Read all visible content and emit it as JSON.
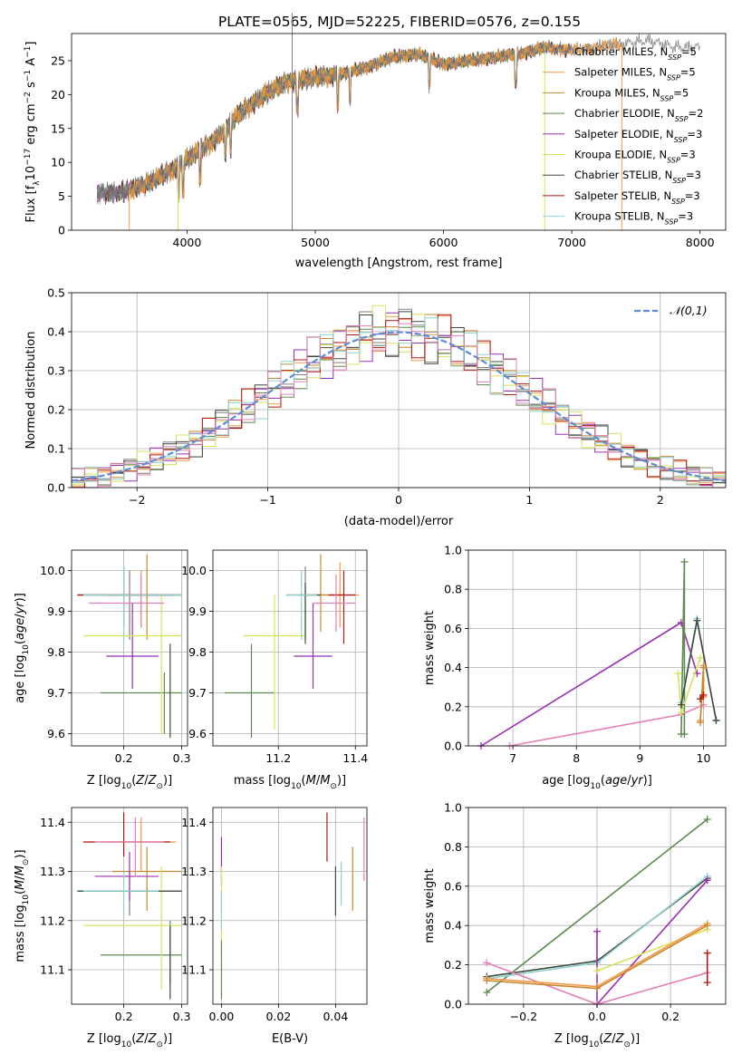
{
  "figure": {
    "title": "PLATE=0565, MJD=52225, FIBERID=0576, z=0.155"
  },
  "colors": {
    "Chabrier MILES": "#808080",
    "Salpeter MILES": "#f59a4a",
    "Kroupa MILES": "#c9882e",
    "Chabrier ELODIE": "#5d8a4e",
    "Salpeter ELODIE": "#9a2fb3",
    "Kroupa ELODIE": "#d7e35a",
    "Chabrier STELIB": "#3f4a3d",
    "Salpeter STELIB": "#b01515",
    "Kroupa STELIB": "#8fd1d1",
    "pink": "#e57fb5",
    "normal": "#5b8ed6"
  },
  "chart_data": [
    {
      "id": "spectrum",
      "type": "line",
      "xlabel": "wavelength [Angstrom, rest frame]",
      "ylabel": "Flux [f_λ10^-17 erg cm^-2 s^-1 A^-1]",
      "xlim": [
        3100,
        8200
      ],
      "ylim": [
        0,
        29
      ],
      "xticks": [
        4000,
        5000,
        6000,
        7000,
        8000
      ],
      "yticks": [
        0,
        5,
        10,
        15,
        20,
        25
      ],
      "grid": false,
      "legend_position": "upper-right",
      "legend": [
        {
          "name": "Chabrier MILES",
          "nssp": "5"
        },
        {
          "name": "Salpeter MILES",
          "nssp": "5"
        },
        {
          "name": "Kroupa MILES",
          "nssp": "5"
        },
        {
          "name": "Chabrier ELODIE",
          "nssp": "2"
        },
        {
          "name": "Salpeter ELODIE",
          "nssp": "3"
        },
        {
          "name": "Kroupa ELODIE",
          "nssp": "3"
        },
        {
          "name": "Chabrier STELIB",
          "nssp": "3"
        },
        {
          "name": "Salpeter STELIB",
          "nssp": "3"
        },
        {
          "name": "Kroupa STELIB",
          "nssp": "3"
        }
      ],
      "continuum": {
        "x": [
          3300,
          3500,
          3700,
          3900,
          4000,
          4200,
          4400,
          4600,
          4800,
          5000,
          5200,
          5400,
          5600,
          5800,
          6000,
          6200,
          6400,
          6600,
          6800,
          7000,
          7200,
          7400,
          7600,
          7800
        ],
        "y": [
          5.5,
          5.6,
          7.0,
          9.0,
          10.5,
          13.0,
          17.0,
          20.0,
          22.0,
          22.5,
          23.0,
          24.0,
          25.5,
          26.0,
          24.5,
          25.0,
          25.5,
          26.0,
          27.0,
          26.5,
          27.0,
          27.5,
          28.0,
          27.0
        ]
      },
      "drops": [
        {
          "x": 3550,
          "series": "Salpeter MILES"
        },
        {
          "x": 3930,
          "series": "Kroupa ELODIE"
        },
        {
          "x": 6790,
          "series": "Kroupa ELODIE"
        },
        {
          "x": 7390,
          "series": "Salpeter MILES"
        },
        {
          "x": 4820,
          "series": "Chabrier MILES"
        }
      ]
    },
    {
      "id": "residuals",
      "type": "line",
      "xlabel": "(data-model)/error",
      "ylabel": "Normed distribution",
      "xlim": [
        -2.5,
        2.5
      ],
      "ylim": [
        0,
        0.5
      ],
      "xticks": [
        -2,
        -1,
        0,
        1,
        2
      ],
      "yticks": [
        0.0,
        0.1,
        0.2,
        0.3,
        0.4,
        0.5
      ],
      "grid": true,
      "legend": [
        {
          "name": "𝒩(0,1)",
          "style": "dashed"
        }
      ],
      "legend_position": "upper-right",
      "bin_width": 0.1,
      "base_amplitude": 0.3989
    },
    {
      "id": "age-vs-Z",
      "type": "scatter",
      "xlabel": "Z [log10(Z/Z⊙)]",
      "ylabel": "age [log10(age/yr)]",
      "xlim": [
        0.11,
        0.31
      ],
      "ylim": [
        9.57,
        10.05
      ],
      "xticks": [
        0.2,
        0.3
      ],
      "yticks": [
        9.6,
        9.7,
        9.8,
        9.9,
        10.0
      ],
      "grid": true,
      "errorbars": [
        {
          "s": "Chabrier MILES",
          "x": 0.21,
          "y": 9.94,
          "xl": 0.12,
          "xh": 0.3,
          "yl": 9.83,
          "yh": 10.0
        },
        {
          "s": "Salpeter MILES",
          "x": 0.23,
          "y": 9.94,
          "xl": 0.17,
          "xh": 0.29,
          "yl": 9.86,
          "yh": 10.0
        },
        {
          "s": "Kroupa MILES",
          "x": 0.24,
          "y": 9.94,
          "xl": 0.18,
          "xh": 0.3,
          "yl": 9.83,
          "yh": 10.04
        },
        {
          "s": "Chabrier ELODIE",
          "x": 0.27,
          "y": 9.7,
          "xl": 0.16,
          "xh": 0.3,
          "yl": 9.6,
          "yh": 9.75
        },
        {
          "s": "Salpeter ELODIE",
          "x": 0.215,
          "y": 9.79,
          "xl": 0.17,
          "xh": 0.26,
          "yl": 9.71,
          "yh": 9.92
        },
        {
          "s": "Kroupa ELODIE",
          "x": 0.265,
          "y": 9.84,
          "xl": 0.13,
          "xh": 0.3,
          "yl": 9.6,
          "yh": 9.94
        },
        {
          "s": "Chabrier STELIB",
          "x": 0.28,
          "y": 9.94,
          "xl": 0.12,
          "xh": 0.3,
          "yl": 9.59,
          "yh": 9.82
        },
        {
          "s": "Salpeter STELIB",
          "x": 0.2,
          "y": 9.94,
          "xl": 0.12,
          "xh": 0.29,
          "yl": 9.86,
          "yh": 10.01
        },
        {
          "s": "Kroupa STELIB",
          "x": 0.2,
          "y": 9.94,
          "xl": 0.13,
          "xh": 0.3,
          "yl": 9.82,
          "yh": 10.01
        },
        {
          "s": "pink",
          "x": 0.23,
          "y": 9.92,
          "xl": 0.14,
          "xh": 0.27,
          "yl": 9.86,
          "yh": 9.99
        }
      ]
    },
    {
      "id": "age-vs-mass",
      "type": "scatter",
      "xlabel": "mass [log10(M/M⊙)]",
      "ylabel": "",
      "xlim": [
        11.03,
        11.43
      ],
      "ylim": [
        9.57,
        10.05
      ],
      "xticks": [
        11.2,
        11.4
      ],
      "yticks": [
        9.6,
        9.7,
        9.8,
        9.9,
        10.0
      ],
      "grid": true,
      "errorbars": [
        {
          "s": "Chabrier MILES",
          "x": 11.27,
          "y": 9.94,
          "xl": 11.25,
          "xh": 11.31,
          "yl": 9.83,
          "yh": 10.01
        },
        {
          "s": "Salpeter MILES",
          "x": 11.36,
          "y": 9.94,
          "xl": 11.3,
          "xh": 11.41,
          "yl": 9.86,
          "yh": 10.02
        },
        {
          "s": "Kroupa MILES",
          "x": 11.31,
          "y": 9.94,
          "xl": 11.27,
          "xh": 11.36,
          "yl": 9.85,
          "yh": 10.04
        },
        {
          "s": "Chabrier ELODIE",
          "x": 11.13,
          "y": 9.7,
          "xl": 11.06,
          "xh": 11.19,
          "yl": 9.59,
          "yh": 9.82
        },
        {
          "s": "Salpeter ELODIE",
          "x": 11.29,
          "y": 9.79,
          "xl": 11.24,
          "xh": 11.34,
          "yl": 9.71,
          "yh": 9.92
        },
        {
          "s": "Kroupa ELODIE",
          "x": 11.19,
          "y": 9.84,
          "xl": 11.11,
          "xh": 11.27,
          "yl": 9.61,
          "yh": 9.94
        },
        {
          "s": "Chabrier STELIB",
          "x": 11.27,
          "y": 9.94,
          "xl": 11.22,
          "xh": 11.31,
          "yl": 9.82,
          "yh": 9.97
        },
        {
          "s": "Salpeter STELIB",
          "x": 11.37,
          "y": 9.94,
          "xl": 11.33,
          "xh": 11.4,
          "yl": 9.82,
          "yh": 10.0
        },
        {
          "s": "Kroupa STELIB",
          "x": 11.26,
          "y": 9.94,
          "xl": 11.22,
          "xh": 11.3,
          "yl": 9.83,
          "yh": 10.0
        },
        {
          "s": "pink",
          "x": 11.35,
          "y": 9.92,
          "xl": 11.29,
          "xh": 11.4,
          "yl": 9.85,
          "yh": 9.99
        }
      ]
    },
    {
      "id": "weight-vs-age",
      "type": "line",
      "xlabel": "age [log10(age/yr)]",
      "ylabel": "mass weight",
      "xlim": [
        6.3,
        10.35
      ],
      "ylim": [
        0,
        1
      ],
      "xticks": [
        7,
        8,
        9,
        10
      ],
      "yticks": [
        0.0,
        0.2,
        0.4,
        0.6,
        0.8,
        1.0
      ],
      "grid": true,
      "series": [
        {
          "s": "Salpeter ELODIE",
          "x": [
            6.5,
            9.65,
            9.9
          ],
          "y": [
            0.0,
            0.63,
            0.37
          ]
        },
        {
          "s": "pink",
          "x": [
            6.95,
            9.65,
            10.0
          ],
          "y": [
            0.0,
            0.16,
            0.21
          ]
        },
        {
          "s": "Chabrier ELODIE",
          "x": [
            9.65,
            9.7,
            9.7
          ],
          "y": [
            0.06,
            0.94,
            0.06
          ]
        },
        {
          "s": "Kroupa ELODIE",
          "x": [
            9.6,
            9.65,
            9.95
          ],
          "y": [
            0.37,
            0.17,
            0.45
          ]
        },
        {
          "s": "Kroupa STELIB",
          "x": [
            9.65,
            9.9,
            10.2
          ],
          "y": [
            0.22,
            0.65,
            0.13
          ]
        },
        {
          "s": "Chabrier STELIB",
          "x": [
            9.65,
            9.9,
            10.2
          ],
          "y": [
            0.21,
            0.64,
            0.13
          ]
        },
        {
          "s": "Salpeter MILES",
          "x": [
            9.95,
            10.0,
            10.0
          ],
          "y": [
            0.13,
            0.41,
            0.26
          ]
        },
        {
          "s": "Kroupa MILES",
          "x": [
            9.95,
            10.0,
            10.0
          ],
          "y": [
            0.12,
            0.4,
            0.25
          ]
        },
        {
          "s": "Salpeter STELIB",
          "x": [
            9.95,
            10.0
          ],
          "y": [
            0.24,
            0.26
          ]
        }
      ]
    },
    {
      "id": "mass-vs-Z",
      "type": "scatter",
      "xlabel": "Z [log10(Z/Z⊙)]",
      "ylabel": "mass [log10(M/M⊙)]",
      "xlim": [
        0.11,
        0.31
      ],
      "ylim": [
        11.03,
        11.43
      ],
      "xticks": [
        0.2,
        0.3
      ],
      "yticks": [
        11.1,
        11.2,
        11.3,
        11.4
      ],
      "grid": true,
      "errorbars": [
        {
          "s": "Chabrier MILES",
          "x": 0.21,
          "y": 11.26,
          "xl": 0.12,
          "xh": 0.3,
          "yl": 11.21,
          "yh": 11.3
        },
        {
          "s": "Salpeter MILES",
          "x": 0.23,
          "y": 11.36,
          "xl": 0.17,
          "xh": 0.29,
          "yl": 11.3,
          "yh": 11.41
        },
        {
          "s": "Kroupa MILES",
          "x": 0.24,
          "y": 11.3,
          "xl": 0.18,
          "xh": 0.3,
          "yl": 11.22,
          "yh": 11.35
        },
        {
          "s": "Chabrier ELODIE",
          "x": 0.28,
          "y": 11.13,
          "xl": 0.16,
          "xh": 0.3,
          "yl": 11.07,
          "yh": 11.2
        },
        {
          "s": "Salpeter ELODIE",
          "x": 0.21,
          "y": 11.29,
          "xl": 0.15,
          "xh": 0.26,
          "yl": 11.24,
          "yh": 11.34
        },
        {
          "s": "Kroupa ELODIE",
          "x": 0.265,
          "y": 11.19,
          "xl": 0.13,
          "xh": 0.3,
          "yl": 11.06,
          "yh": 11.31
        },
        {
          "s": "Chabrier STELIB",
          "x": 0.28,
          "y": 11.26,
          "xl": 0.12,
          "xh": 0.3,
          "yl": 11.04,
          "yh": 11.19
        },
        {
          "s": "Salpeter STELIB",
          "x": 0.2,
          "y": 11.36,
          "xl": 0.13,
          "xh": 0.28,
          "yl": 11.33,
          "yh": 11.42
        },
        {
          "s": "Kroupa STELIB",
          "x": 0.2,
          "y": 11.26,
          "xl": 0.13,
          "xh": 0.26,
          "yl": 11.21,
          "yh": 11.3
        },
        {
          "s": "pink",
          "x": 0.22,
          "y": 11.36,
          "xl": 0.15,
          "xh": 0.27,
          "yl": 11.29,
          "yh": 11.41
        }
      ]
    },
    {
      "id": "mass-vs-ebv",
      "type": "scatter",
      "xlabel": "E(B-V)",
      "ylabel": "",
      "xlim": [
        -0.003,
        0.051
      ],
      "ylim": [
        11.03,
        11.43
      ],
      "xticks": [
        0.0,
        0.02,
        0.04
      ],
      "yticks": [
        11.1,
        11.2,
        11.3,
        11.4
      ],
      "grid": true,
      "vbars": [
        {
          "s": "Salpeter ELODIE",
          "x": 0.0,
          "yl": 11.27,
          "yh": 11.37
        },
        {
          "s": "Kroupa ELODIE",
          "x": 0.0,
          "yl": 11.12,
          "yh": 11.31
        },
        {
          "s": "Chabrier ELODIE",
          "x": 0.0,
          "yl": 11.04,
          "yh": 11.16
        },
        {
          "s": "Kroupa STELIB",
          "x": 0.0,
          "yl": 11.18,
          "yh": 11.26
        },
        {
          "s": "Salpeter STELIB",
          "x": 0.037,
          "yl": 11.32,
          "yh": 11.42
        },
        {
          "s": "Chabrier STELIB",
          "x": 0.04,
          "yl": 11.21,
          "yh": 11.31
        },
        {
          "s": "Kroupa STELIB",
          "x": 0.042,
          "yl": 11.23,
          "yh": 11.32
        },
        {
          "s": "Kroupa MILES",
          "x": 0.046,
          "yl": 11.22,
          "yh": 11.35
        },
        {
          "s": "pink",
          "x": 0.05,
          "yl": 11.28,
          "yh": 11.41
        }
      ]
    },
    {
      "id": "weight-vs-Z",
      "type": "line",
      "xlabel": "Z [log10(Z/Z⊙)]",
      "ylabel": "mass weight",
      "xlim": [
        -0.35,
        0.35
      ],
      "ylim": [
        0,
        1
      ],
      "xticks": [
        -0.2,
        0.0,
        0.2
      ],
      "yticks": [
        0.0,
        0.2,
        0.4,
        0.6,
        0.8,
        1.0
      ],
      "grid": true,
      "series": [
        {
          "s": "Chabrier ELODIE",
          "x": [
            -0.3,
            0.3
          ],
          "y": [
            0.06,
            0.94
          ]
        },
        {
          "s": "Chabrier STELIB",
          "x": [
            -0.3,
            0.0,
            0.3
          ],
          "y": [
            0.14,
            0.22,
            0.64
          ]
        },
        {
          "s": "Kroupa STELIB",
          "x": [
            -0.3,
            0.0,
            0.3
          ],
          "y": [
            0.13,
            0.21,
            0.65
          ]
        },
        {
          "s": "Salpeter ELODIE",
          "x": [
            0.0,
            0.0,
            0.3
          ],
          "y": [
            0.37,
            0.0,
            0.63
          ]
        },
        {
          "s": "pink",
          "x": [
            -0.3,
            0.0,
            0.3
          ],
          "y": [
            0.21,
            0.0,
            0.16
          ]
        },
        {
          "s": "Kroupa ELODIE",
          "x": [
            0.0,
            0.3
          ],
          "y": [
            0.17,
            0.38
          ]
        },
        {
          "s": "Salpeter MILES",
          "x": [
            -0.3,
            0.0,
            0.3
          ],
          "y": [
            0.13,
            0.09,
            0.41
          ]
        },
        {
          "s": "Kroupa MILES",
          "x": [
            -0.3,
            0.0,
            0.3
          ],
          "y": [
            0.12,
            0.08,
            0.4
          ]
        },
        {
          "s": "Salpeter STELIB",
          "x": [
            0.3,
            0.3
          ],
          "y": [
            0.11,
            0.26
          ]
        }
      ]
    }
  ]
}
